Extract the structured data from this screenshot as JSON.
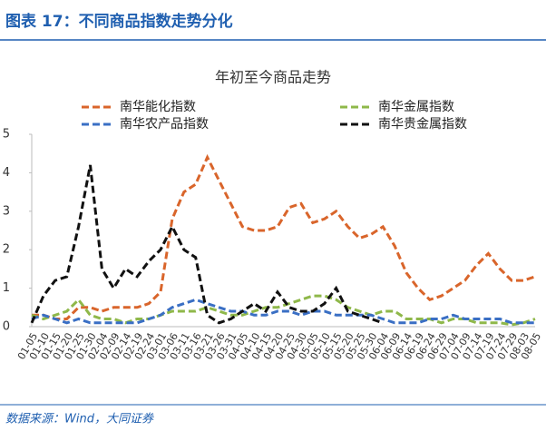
{
  "header": "图表 17：不同商品指数走势分化",
  "source": "数据来源：Wind，大同证券",
  "chart_data": {
    "type": "line",
    "title": "年初至今商品走势",
    "categories": [
      "01-05",
      "01-10",
      "01-15",
      "01-20",
      "01-25",
      "01-30",
      "02-04",
      "02-09",
      "02-14",
      "02-19",
      "02-24",
      "03-01",
      "03-06",
      "03-11",
      "03-16",
      "03-21",
      "03-26",
      "03-31",
      "04-05",
      "04-10",
      "04-15",
      "04-20",
      "04-25",
      "04-30",
      "05-05",
      "05-10",
      "05-15",
      "05-20",
      "05-25",
      "05-30",
      "06-04",
      "06-09",
      "06-14",
      "06-19",
      "06-24",
      "06-29",
      "07-04",
      "07-09",
      "07-14",
      "07-19",
      "07-24",
      "07-29",
      "08-03",
      "08-05"
    ],
    "series": [
      {
        "name": "南华能化指数",
        "color": "#d9652b",
        "values": [
          0.3,
          0.3,
          0.2,
          0.2,
          0.5,
          0.5,
          0.4,
          0.5,
          0.5,
          0.5,
          0.6,
          0.9,
          2.8,
          3.5,
          3.7,
          4.4,
          3.8,
          3.2,
          2.6,
          2.5,
          2.5,
          2.6,
          3.1,
          3.2,
          2.7,
          2.8,
          3.0,
          2.6,
          2.3,
          2.4,
          2.6,
          2.1,
          1.4,
          1.0,
          0.7,
          0.8,
          1.0,
          1.2,
          1.6,
          1.9,
          1.5,
          1.2,
          1.2,
          1.3
        ]
      },
      {
        "name": "南华金属指数",
        "color": "#8fb84a",
        "values": [
          0.3,
          0.2,
          0.3,
          0.4,
          0.7,
          0.3,
          0.2,
          0.2,
          0.1,
          0.2,
          0.2,
          0.3,
          0.4,
          0.4,
          0.4,
          0.5,
          0.4,
          0.3,
          0.3,
          0.4,
          0.5,
          0.5,
          0.6,
          0.7,
          0.8,
          0.8,
          0.7,
          0.5,
          0.4,
          0.3,
          0.4,
          0.4,
          0.2,
          0.2,
          0.2,
          0.1,
          0.2,
          0.2,
          0.1,
          0.1,
          0.1,
          0.05,
          0.1,
          0.2
        ]
      },
      {
        "name": "南华农产品指数",
        "color": "#3a6fc4",
        "values": [
          0.2,
          0.3,
          0.2,
          0.1,
          0.2,
          0.1,
          0.1,
          0.1,
          0.1,
          0.1,
          0.2,
          0.3,
          0.5,
          0.6,
          0.7,
          0.6,
          0.5,
          0.4,
          0.4,
          0.3,
          0.3,
          0.4,
          0.4,
          0.3,
          0.4,
          0.4,
          0.3,
          0.3,
          0.3,
          0.3,
          0.2,
          0.1,
          0.1,
          0.1,
          0.2,
          0.2,
          0.3,
          0.2,
          0.2,
          0.2,
          0.2,
          0.1,
          0.1,
          0.1
        ]
      },
      {
        "name": "南华贵金属指数",
        "color": "#111111",
        "values": [
          0.1,
          0.8,
          1.2,
          1.3,
          2.6,
          4.2,
          1.5,
          1.0,
          1.5,
          1.3,
          1.7,
          2.0,
          2.6,
          2.0,
          1.8,
          0.3,
          0.1,
          0.2,
          0.4,
          0.6,
          0.4,
          0.9,
          0.5,
          0.4,
          0.4,
          0.6,
          1.0,
          0.4,
          0.3,
          0.2,
          0.1,
          null,
          null,
          null,
          null,
          null,
          null,
          null,
          null,
          null,
          null,
          null,
          null,
          null
        ]
      }
    ],
    "ylim": [
      0,
      5
    ],
    "yticks": [
      0,
      1,
      2,
      3,
      4,
      5
    ]
  }
}
